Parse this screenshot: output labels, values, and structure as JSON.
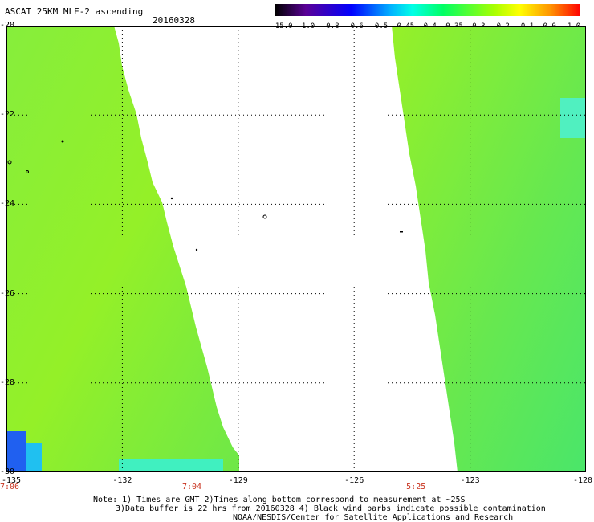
{
  "header": {
    "title": "ASCAT 25KM MLE-2 ascending",
    "date": "20160328"
  },
  "colorbar": {
    "labels": [
      "-15.0",
      "-1.0",
      "-0.8",
      "-0.6",
      "-0.5",
      "-0.45",
      "-0.4",
      "-0.35",
      "-0.3",
      "-0.2",
      "-0.1",
      "0.0",
      "1.0"
    ],
    "colors": [
      "#000000",
      "#5a0096",
      "#0000ff",
      "#00b4ff",
      "#00ffe6",
      "#00ff64",
      "#aaff00",
      "#ffff00",
      "#ff9600",
      "#ff0000"
    ]
  },
  "map": {
    "lat_labels": [
      "-20",
      "-22",
      "-24",
      "-26",
      "-28",
      "-30"
    ],
    "lon_labels": [
      "-135",
      "-132",
      "-129",
      "-126",
      "-123",
      "-120"
    ],
    "lat_range": [
      -30,
      -20
    ],
    "lon_range": [
      -135,
      -120
    ],
    "grid": true,
    "time_labels": [
      {
        "lon": -135,
        "text": "7:06"
      },
      {
        "lon": -130.2,
        "text": "7:04"
      },
      {
        "lon": -124.4,
        "text": "5:25"
      }
    ],
    "colors": {
      "field": "#8cf032",
      "land_outline": "#000000",
      "grid": "#000000"
    }
  },
  "notes": {
    "line1": "Note: 1) Times are GMT 2)Times along bottom correspond to measurement at ~25S",
    "line2": "3)Data buffer is 22 hrs from 20160328 4) Black wind barbs indicate possible contamination",
    "line3": "NOAA/NESDIS/Center for Satellite Applications and Research"
  }
}
